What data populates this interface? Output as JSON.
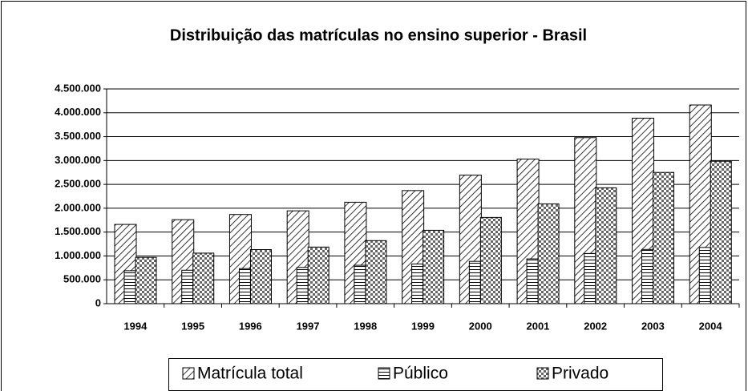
{
  "chart_data": {
    "type": "bar",
    "title": "Distribuição das matrículas no ensino superior - Brasil",
    "categories": [
      "1994",
      "1995",
      "1996",
      "1997",
      "1998",
      "1999",
      "2000",
      "2001",
      "2002",
      "2003",
      "2004"
    ],
    "series": [
      {
        "name": "Matrícula total",
        "values": [
          1661034,
          1759703,
          1868529,
          1945615,
          2125958,
          2369945,
          2694245,
          3030754,
          3479913,
          3887022,
          4163733
        ]
      },
      {
        "name": "Público",
        "values": [
          690450,
          700540,
          735427,
          759182,
          804729,
          832022,
          887026,
          939225,
          1051655,
          1136370,
          1178328
        ]
      },
      {
        "name": "Privado",
        "values": [
          970584,
          1059163,
          1133102,
          1186433,
          1321229,
          1537923,
          1807219,
          2091529,
          2428258,
          2750652,
          2985405
        ]
      }
    ],
    "ylim": [
      0,
      4500000
    ],
    "yticks": [
      0,
      {
        "value": 500000,
        "label": "500.000"
      },
      {
        "value": 1000000,
        "label": "1.000.000"
      },
      {
        "value": 1500000,
        "label": "1.500.000"
      },
      {
        "value": 2000000,
        "label": "2.000.000"
      },
      {
        "value": 2500000,
        "label": "2.500.000"
      },
      {
        "value": 3000000,
        "label": "3.000.000"
      },
      {
        "value": 3500000,
        "label": "3.500.000"
      },
      {
        "value": 4000000,
        "label": "4.000.000"
      },
      {
        "value": 4500000,
        "label": "4.500.000"
      }
    ],
    "grid": true,
    "legend": "bottom"
  }
}
